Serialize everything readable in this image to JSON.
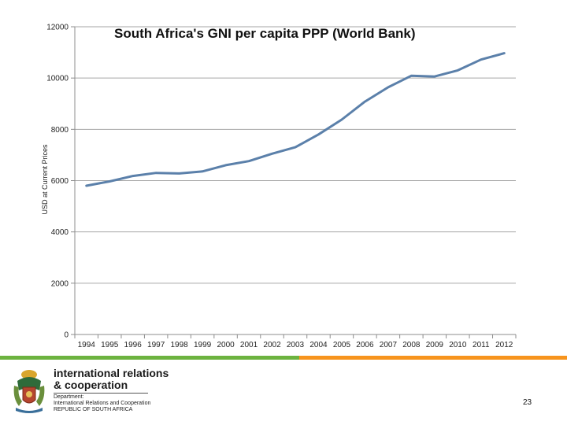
{
  "chart_data": {
    "type": "line",
    "title": "South Africa's GNI per capita PPP (World Bank)",
    "xlabel": "",
    "ylabel": "USD at Current Prices",
    "x": [
      "1994",
      "1995",
      "1996",
      "1997",
      "1998",
      "1999",
      "2000",
      "2001",
      "2002",
      "2003",
      "2004",
      "2005",
      "2006",
      "2007",
      "2008",
      "2009",
      "2010",
      "2011",
      "2012"
    ],
    "series": [
      {
        "values": [
          5800,
          5970,
          6180,
          6300,
          6280,
          6360,
          6600,
          6760,
          7050,
          7300,
          7800,
          8380,
          9080,
          9640,
          10090,
          10060,
          10300,
          10720,
          10970
        ]
      }
    ],
    "ylim": [
      0,
      12000
    ],
    "yticks": [
      0,
      2000,
      4000,
      6000,
      8000,
      10000,
      12000
    ],
    "grid": true,
    "legend": "none",
    "colors": {
      "line": "#5b80aa",
      "grid": "#a6a6a6",
      "axis": "#8c8c8c"
    }
  },
  "footer": {
    "org_line1": "international relations",
    "org_line2": "& cooperation",
    "dept_line1": "Department:",
    "dept_line2": "International Relations and Cooperation",
    "dept_line3": "REPUBLIC OF SOUTH AFRICA",
    "page_number": "23",
    "colors": {
      "green": "#6cb33f",
      "orange": "#f7941d"
    }
  }
}
